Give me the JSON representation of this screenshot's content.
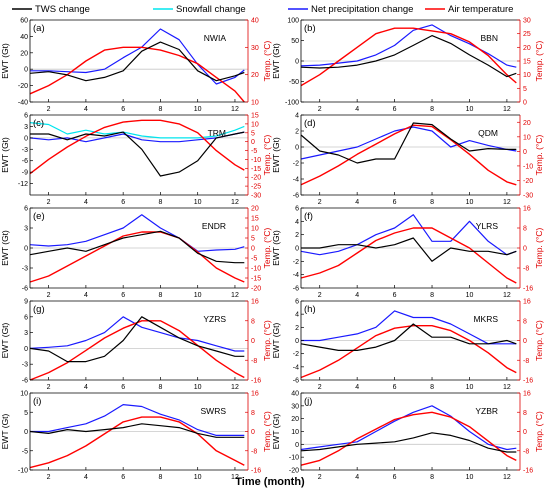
{
  "legend": [
    {
      "key": "tws",
      "label": "TWS change",
      "color": "#000000"
    },
    {
      "key": "snow",
      "label": "Snowfall change",
      "color": "#00e5ee"
    },
    {
      "key": "prec",
      "label": "Net precipitation change",
      "color": "#1a1aff"
    },
    {
      "key": "temp",
      "label": "Air temperature",
      "color": "#ff0000"
    }
  ],
  "xlabel": "Time (month)",
  "ylabel_left": "EWT (Gt)",
  "ylabel_right": "Temp. (°C)",
  "chart_data": [
    {
      "type": "line",
      "panel": "(a)",
      "name": "NWIA",
      "xlim": [
        1,
        12.7
      ],
      "xticks": [
        2,
        4,
        6,
        8,
        10,
        12
      ],
      "ylim": [
        -40,
        60
      ],
      "yticks": [
        -40,
        -20,
        0,
        20,
        40,
        60
      ],
      "y2lim": [
        10,
        40
      ],
      "y2ticks": [
        10,
        20,
        30,
        40
      ],
      "x": [
        1,
        2,
        3,
        4,
        5,
        6,
        7,
        8,
        9,
        10,
        11,
        12,
        12.5
      ],
      "series": {
        "tws": [
          -5,
          -3,
          -7,
          -14,
          -10,
          -2,
          22,
          33,
          24,
          -2,
          -14,
          -8,
          -4
        ],
        "prec": [
          -2,
          -2,
          -3,
          -4,
          0,
          14,
          27,
          49,
          36,
          6,
          -18,
          -10,
          -1
        ],
        "temp": [
          13,
          16,
          20,
          25,
          29,
          30,
          30,
          29,
          27,
          24,
          19,
          14,
          10
        ]
      }
    },
    {
      "type": "line",
      "panel": "(b)",
      "name": "BBN",
      "xlim": [
        1,
        12.7
      ],
      "xticks": [
        2,
        4,
        6,
        8,
        10,
        12
      ],
      "ylim": [
        -100,
        100
      ],
      "yticks": [
        -100,
        -50,
        0,
        50,
        100
      ],
      "y2lim": [
        0,
        30
      ],
      "y2ticks": [
        0,
        5,
        10,
        15,
        20,
        25,
        30
      ],
      "x": [
        1,
        2,
        3,
        4,
        5,
        6,
        7,
        8,
        9,
        10,
        11,
        12,
        12.5
      ],
      "series": {
        "tws": [
          -15,
          -17,
          -15,
          -10,
          0,
          15,
          38,
          62,
          43,
          15,
          -10,
          -38,
          -30
        ],
        "prec": [
          -12,
          -10,
          -5,
          0,
          15,
          38,
          75,
          88,
          62,
          42,
          18,
          -10,
          -15
        ],
        "temp": [
          6,
          10,
          15,
          20,
          25,
          27,
          27,
          26,
          25,
          22,
          17,
          10,
          7
        ]
      }
    },
    {
      "type": "line",
      "panel": "(c)",
      "name": "TRM",
      "xlim": [
        1,
        12.7
      ],
      "xticks": [
        2,
        4,
        6,
        8,
        10,
        12
      ],
      "ylim": [
        -15,
        6
      ],
      "yticks": [
        -12,
        -9,
        -6,
        -3,
        0,
        3,
        6
      ],
      "y2lim": [
        -30,
        15
      ],
      "y2ticks": [
        -30,
        -25,
        -20,
        -15,
        -10,
        -5,
        0,
        5,
        10,
        15
      ],
      "x": [
        1,
        2,
        3,
        4,
        5,
        6,
        7,
        8,
        9,
        10,
        11,
        12,
        12.5
      ],
      "series": {
        "tws": [
          1,
          1,
          -0.5,
          1,
          0.5,
          1.5,
          -3,
          -10,
          -9,
          -6,
          0,
          1,
          1.5
        ],
        "snow": [
          4,
          3.5,
          1,
          2,
          1,
          1.5,
          0.5,
          0,
          0,
          0,
          0.5,
          2,
          3
        ],
        "prec": [
          0,
          -0.5,
          0,
          -1,
          0,
          1,
          -0.5,
          -1,
          -1,
          -0.5,
          0,
          1,
          1.5
        ],
        "temp": [
          -18,
          -10,
          -3,
          3,
          8,
          11,
          12,
          12,
          10,
          5,
          -5,
          -13,
          -16
        ]
      }
    },
    {
      "type": "line",
      "panel": "(d)",
      "name": "QDM",
      "xlim": [
        1,
        12.7
      ],
      "xticks": [
        2,
        4,
        6,
        8,
        10,
        12
      ],
      "ylim": [
        -6,
        4
      ],
      "yticks": [
        -6,
        -4,
        -2,
        0,
        2,
        4
      ],
      "y2lim": [
        -30,
        25
      ],
      "y2ticks": [
        -30,
        -20,
        -10,
        0,
        10,
        20
      ],
      "x": [
        1,
        2,
        3,
        4,
        5,
        6,
        7,
        8,
        9,
        10,
        11,
        12,
        12.5
      ],
      "series": {
        "tws": [
          1.5,
          -0.5,
          -1,
          -2,
          -1.5,
          -1.5,
          3,
          2.8,
          1,
          -0.5,
          -0.2,
          -0.3,
          -0.3
        ],
        "prec": [
          -1.5,
          -1,
          -0.5,
          0,
          1,
          2,
          2.5,
          2,
          0,
          0.8,
          0.2,
          -0.3,
          -0.5
        ],
        "temp": [
          -23,
          -17,
          -10,
          -2,
          5,
          12,
          18,
          17,
          8,
          -2,
          -13,
          -21,
          -23
        ]
      }
    },
    {
      "type": "line",
      "panel": "(e)",
      "name": "ENDR",
      "xlim": [
        1,
        12.7
      ],
      "xticks": [
        2,
        4,
        6,
        8,
        10,
        12
      ],
      "ylim": [
        -6,
        6
      ],
      "yticks": [
        -6,
        -3,
        0,
        3,
        6
      ],
      "y2lim": [
        -20,
        20
      ],
      "y2ticks": [
        -20,
        -15,
        -10,
        -5,
        0,
        5,
        10,
        15,
        20
      ],
      "x": [
        1,
        2,
        3,
        4,
        5,
        6,
        7,
        8,
        9,
        10,
        11,
        12,
        12.5
      ],
      "series": {
        "tws": [
          -1,
          -0.5,
          0,
          -0.5,
          0.5,
          1.5,
          2,
          2.5,
          1.5,
          -0.8,
          -2,
          -2.2,
          -2.2
        ],
        "prec": [
          0.5,
          0.3,
          0.5,
          1,
          2,
          3,
          5,
          3,
          1.5,
          -0.5,
          -0.3,
          -0.2,
          0.2
        ],
        "temp": [
          -17,
          -14,
          -9,
          -4,
          1,
          6,
          8,
          8,
          5,
          -2,
          -10,
          -15,
          -17
        ]
      }
    },
    {
      "type": "line",
      "panel": "(f)",
      "name": "YLRS",
      "xlim": [
        1,
        12.7
      ],
      "xticks": [
        2,
        4,
        6,
        8,
        10,
        12
      ],
      "ylim": [
        -6,
        6
      ],
      "yticks": [
        -6,
        -4,
        -2,
        0,
        2,
        4,
        6
      ],
      "y2lim": [
        -16,
        16
      ],
      "y2ticks": [
        -16,
        -8,
        0,
        8,
        16
      ],
      "x": [
        1,
        2,
        3,
        4,
        5,
        6,
        7,
        8,
        9,
        10,
        11,
        12,
        12.5
      ],
      "series": {
        "tws": [
          0,
          0,
          0.5,
          0.5,
          0,
          0.5,
          1.5,
          -2,
          0,
          -0.5,
          -0.5,
          -1,
          -0.5
        ],
        "prec": [
          -0.5,
          -1,
          -0.5,
          0.5,
          2,
          3,
          5,
          1,
          1,
          4,
          1,
          -1,
          -0.5
        ],
        "temp": [
          -12,
          -10,
          -7,
          -2,
          3,
          6,
          8,
          8,
          4,
          0,
          -6,
          -12,
          -14
        ]
      }
    },
    {
      "type": "line",
      "panel": "(g)",
      "name": "YZRS",
      "xlim": [
        1,
        12.7
      ],
      "xticks": [
        2,
        4,
        6,
        8,
        10,
        12
      ],
      "ylim": [
        -6,
        9
      ],
      "yticks": [
        -6,
        -3,
        0,
        3,
        6,
        9
      ],
      "y2lim": [
        -16,
        16
      ],
      "y2ticks": [
        -16,
        -8,
        0,
        8,
        16
      ],
      "x": [
        1,
        2,
        3,
        4,
        5,
        6,
        7,
        8,
        9,
        10,
        11,
        12,
        12.5
      ],
      "series": {
        "tws": [
          0,
          -0.5,
          -2.5,
          -2.5,
          -1.5,
          1.5,
          6,
          4,
          2,
          0.5,
          -0.5,
          -1.5,
          -1.5
        ],
        "prec": [
          0,
          0.2,
          0.5,
          1.5,
          3,
          6,
          4,
          3,
          2,
          1.5,
          0.5,
          -0.5,
          -0.5
        ],
        "temp": [
          -16,
          -13,
          -9,
          -4,
          1,
          5,
          8,
          8,
          4,
          -2,
          -8,
          -13,
          -15
        ]
      }
    },
    {
      "type": "line",
      "panel": "(h)",
      "name": "MKRS",
      "xlim": [
        1,
        12.7
      ],
      "xticks": [
        2,
        4,
        6,
        8,
        10,
        12
      ],
      "ylim": [
        -6,
        6
      ],
      "yticks": [
        -6,
        -4,
        -2,
        0,
        2,
        4,
        6
      ],
      "y2lim": [
        -16,
        16
      ],
      "y2ticks": [
        -16,
        -8,
        0,
        8,
        16
      ],
      "x": [
        1,
        2,
        3,
        4,
        5,
        6,
        7,
        8,
        9,
        10,
        11,
        12,
        12.5
      ],
      "series": {
        "tws": [
          -0.5,
          -1,
          -1.5,
          -1.5,
          -1,
          0,
          2.5,
          0.5,
          0.5,
          -0.5,
          -0.5,
          0,
          -0.5
        ],
        "prec": [
          0,
          0,
          0.5,
          1,
          2,
          4.5,
          3.5,
          3.5,
          2.5,
          1,
          -0.5,
          -0.5,
          -0.5
        ],
        "temp": [
          -15,
          -12,
          -8,
          -3,
          2,
          5,
          6,
          6,
          4,
          0,
          -5,
          -11,
          -13
        ]
      }
    },
    {
      "type": "line",
      "panel": "(i)",
      "name": "SWRS",
      "xlim": [
        1,
        12.7
      ],
      "xticks": [
        2,
        4,
        6,
        8,
        10,
        12
      ],
      "ylim": [
        -10,
        10
      ],
      "yticks": [
        -10,
        -5,
        0,
        5,
        10
      ],
      "y2lim": [
        -16,
        16
      ],
      "y2ticks": [
        -16,
        -8,
        0,
        8,
        16
      ],
      "x": [
        1,
        2,
        3,
        4,
        5,
        6,
        7,
        8,
        9,
        10,
        11,
        12,
        12.5
      ],
      "series": {
        "tws": [
          0,
          -0.5,
          0.5,
          0,
          0.5,
          1,
          2,
          1.5,
          1,
          -0.5,
          -1.5,
          -1.5,
          -1.5
        ],
        "prec": [
          0,
          0,
          1,
          2,
          4,
          7,
          6.5,
          4.5,
          3,
          0.5,
          -1,
          -1,
          -1
        ],
        "temp": [
          -15,
          -13,
          -10,
          -6,
          -1,
          4,
          6,
          6,
          4,
          -1,
          -8,
          -12,
          -14
        ]
      }
    },
    {
      "type": "line",
      "panel": "(j)",
      "name": "YZBR",
      "xlim": [
        1,
        12.7
      ],
      "xticks": [
        2,
        4,
        6,
        8,
        10,
        12
      ],
      "ylim": [
        -20,
        40
      ],
      "yticks": [
        -20,
        -10,
        0,
        10,
        20,
        30,
        40
      ],
      "y2lim": [
        -16,
        16
      ],
      "y2ticks": [
        -16,
        -8,
        0,
        8,
        16
      ],
      "x": [
        1,
        2,
        3,
        4,
        5,
        6,
        7,
        8,
        9,
        10,
        11,
        12,
        12.5
      ],
      "series": {
        "tws": [
          -5,
          -4,
          -2,
          0,
          1,
          2,
          5,
          9,
          7,
          3,
          -3,
          -6,
          -6
        ],
        "prec": [
          -4,
          -2,
          0,
          2,
          10,
          18,
          25,
          30,
          22,
          10,
          0,
          -4,
          -3
        ],
        "temp": [
          -14,
          -12,
          -8,
          -3,
          1,
          5,
          7,
          8,
          6,
          2,
          -4,
          -10,
          -12
        ]
      }
    }
  ]
}
